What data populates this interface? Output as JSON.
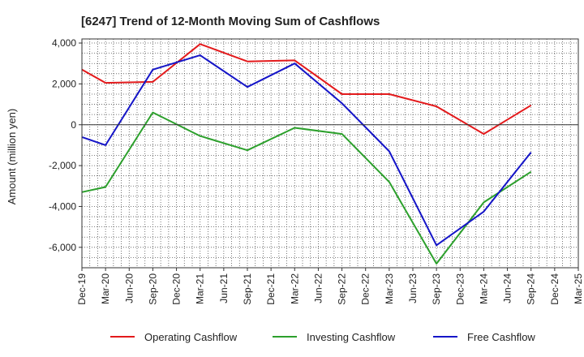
{
  "chart_data": {
    "type": "line",
    "title": "[6247]  Trend of 12-Month Moving Sum of Cashflows",
    "xlabel": "",
    "ylabel": "Amount (million yen)",
    "ylim": [
      -7000,
      4200
    ],
    "yticks": [
      4000,
      2000,
      0,
      -2000,
      -4000,
      -6000
    ],
    "ytick_labels": [
      "4,000",
      "2,000",
      "0",
      "-2,000",
      "-4,000",
      "-6,000"
    ],
    "categories": [
      "Dec-19",
      "Mar-20",
      "Jun-20",
      "Sep-20",
      "Dec-20",
      "Mar-21",
      "Jun-21",
      "Sep-21",
      "Dec-21",
      "Mar-22",
      "Jun-22",
      "Sep-22",
      "Dec-22",
      "Mar-23",
      "Jun-23",
      "Sep-23",
      "Dec-23",
      "Mar-24",
      "Jun-24",
      "Sep-24",
      "Dec-24",
      "Mar-25"
    ],
    "grid": true,
    "legend_position": "bottom",
    "series": [
      {
        "name": "Operating Cashflow",
        "color": "#e31a1c",
        "values": [
          2700,
          2050,
          null,
          2100,
          null,
          3950,
          null,
          3100,
          null,
          3150,
          null,
          1500,
          null,
          1500,
          null,
          900,
          null,
          -450,
          null,
          950,
          null,
          null
        ]
      },
      {
        "name": "Investing Cashflow",
        "color": "#2ca02c",
        "values": [
          -3300,
          -3050,
          null,
          600,
          null,
          -550,
          null,
          -1250,
          null,
          -150,
          null,
          -450,
          null,
          -2800,
          null,
          -6800,
          null,
          -3800,
          null,
          -2300,
          null,
          null
        ]
      },
      {
        "name": "Free Cashflow",
        "color": "#1515c8",
        "values": [
          -600,
          -1000,
          null,
          2700,
          null,
          3400,
          null,
          1850,
          null,
          3000,
          null,
          1050,
          null,
          -1300,
          null,
          -5900,
          null,
          -4250,
          null,
          -1350,
          null,
          null
        ]
      }
    ]
  }
}
